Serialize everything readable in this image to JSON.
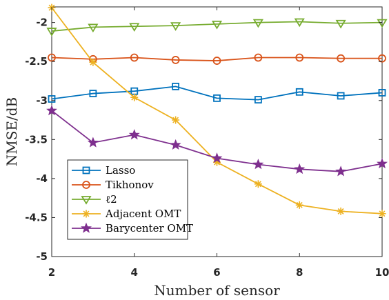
{
  "chart_data": {
    "type": "line",
    "xlabel": "Number of sensor",
    "ylabel": "NMSE/dB",
    "xlim": [
      2,
      10
    ],
    "ylim": [
      -5,
      -1.8
    ],
    "xticks": [
      2,
      4,
      6,
      8,
      10
    ],
    "yticks": [
      -5,
      -4.5,
      -4,
      -3.5,
      -3,
      -2.5,
      -2
    ],
    "xtick_labels": [
      "2",
      "4",
      "6",
      "8",
      "10"
    ],
    "ytick_labels": [
      "-5",
      "-4.5",
      "-4",
      "-3.5",
      "-3",
      "-2.5",
      "-2"
    ],
    "grid": false,
    "legend_position": "bottom-left",
    "x": [
      2,
      3,
      4,
      5,
      6,
      7,
      8,
      9,
      10
    ],
    "series": [
      {
        "name": "Lasso",
        "marker": "square",
        "color": "#0072BD",
        "values": [
          -2.98,
          -2.91,
          -2.88,
          -2.82,
          -2.97,
          -2.99,
          -2.89,
          -2.94,
          -2.9
        ]
      },
      {
        "name": "Tikhonov",
        "marker": "circle",
        "color": "#D95319",
        "values": [
          -2.45,
          -2.47,
          -2.45,
          -2.48,
          -2.49,
          -2.45,
          -2.45,
          -2.46,
          -2.46
        ]
      },
      {
        "name": "ℓ2",
        "marker": "triangle-down",
        "color": "#77AC30",
        "values": [
          -2.11,
          -2.06,
          -2.05,
          -2.04,
          -2.02,
          -2.0,
          -1.99,
          -2.01,
          -2.0
        ]
      },
      {
        "name": "Adjacent OMT",
        "marker": "asterisk",
        "color": "#EDB120",
        "values": [
          -1.81,
          -2.51,
          -2.96,
          -3.25,
          -3.79,
          -4.07,
          -4.34,
          -4.42,
          -4.45
        ]
      },
      {
        "name": "Barycenter OMT",
        "marker": "star",
        "color": "#7E2F8E",
        "values": [
          -3.13,
          -3.54,
          -3.44,
          -3.57,
          -3.74,
          -3.82,
          -3.88,
          -3.91,
          -3.81
        ]
      }
    ]
  }
}
